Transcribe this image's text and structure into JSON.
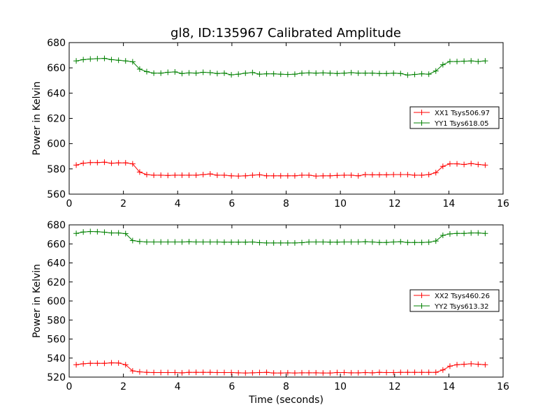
{
  "title": "gl8, ID:135967 Calibrated Amplitude",
  "colors": {
    "red": "#ff0000",
    "green": "#008000"
  },
  "chart_data": [
    {
      "type": "line",
      "title": "gl8, ID:135967 Calibrated Amplitude",
      "xlabel": "",
      "ylabel": "Power in Kelvin",
      "xlim": [
        0,
        16
      ],
      "ylim": [
        560,
        680
      ],
      "xticks": [
        0,
        2,
        4,
        6,
        8,
        10,
        12,
        14,
        16
      ],
      "yticks": [
        560,
        580,
        600,
        620,
        640,
        660,
        680
      ],
      "grid": false,
      "legend": "right",
      "x": [
        0.26,
        0.52,
        0.78,
        1.04,
        1.3,
        1.56,
        1.82,
        2.08,
        2.34,
        2.6,
        2.86,
        3.12,
        3.38,
        3.64,
        3.9,
        4.16,
        4.42,
        4.68,
        4.94,
        5.2,
        5.46,
        5.72,
        5.98,
        6.24,
        6.5,
        6.76,
        7.02,
        7.28,
        7.54,
        7.8,
        8.06,
        8.32,
        8.58,
        8.84,
        9.1,
        9.36,
        9.62,
        9.88,
        10.14,
        10.4,
        10.66,
        10.92,
        11.18,
        11.44,
        11.7,
        11.96,
        12.22,
        12.48,
        12.74,
        13.0,
        13.26,
        13.52,
        13.78,
        14.04,
        14.3,
        14.56,
        14.82,
        15.08,
        15.34
      ],
      "series": [
        {
          "name": "XX1 Tsys506.97",
          "color": "#ff0000",
          "values": [
            583,
            584.5,
            585,
            585,
            585.3,
            584.5,
            584.8,
            584.8,
            584,
            577.5,
            575.5,
            575,
            575,
            574.8,
            575,
            575,
            575,
            575,
            575.5,
            576,
            575,
            575,
            574.5,
            574.3,
            574.5,
            575,
            575.3,
            574.5,
            574.5,
            574.5,
            574.5,
            574.5,
            575,
            575,
            574.3,
            574.5,
            574.5,
            574.8,
            575,
            575,
            574.5,
            575.5,
            575.3,
            575.3,
            575.3,
            575.5,
            575.5,
            575.5,
            575,
            575,
            575.5,
            577,
            582,
            584,
            584,
            583.5,
            584.2,
            583.5,
            583
          ]
        },
        {
          "name": "YY1 Tsys618.05",
          "color": "#008000",
          "values": [
            665.5,
            666.5,
            667,
            667.3,
            667.5,
            666.5,
            666,
            665.5,
            664.8,
            659,
            657,
            655.8,
            655.8,
            656.5,
            656.8,
            655.5,
            656,
            655.8,
            656.5,
            656.2,
            655.5,
            655.8,
            654.5,
            655,
            655.8,
            656.3,
            655,
            655.3,
            655.3,
            655,
            654.8,
            655,
            655.8,
            656,
            655.8,
            656,
            655.8,
            655.5,
            655.8,
            656.2,
            655.8,
            655.8,
            655.8,
            655.5,
            655.5,
            655.8,
            655.5,
            654.3,
            654.8,
            655.3,
            655,
            657.5,
            662.5,
            665,
            665,
            665.3,
            665.5,
            665,
            665.5
          ]
        }
      ]
    },
    {
      "type": "line",
      "title": "",
      "xlabel": "Time (seconds)",
      "ylabel": "Power in Kelvin",
      "xlim": [
        0,
        16
      ],
      "ylim": [
        520,
        680
      ],
      "xticks": [
        0,
        2,
        4,
        6,
        8,
        10,
        12,
        14,
        16
      ],
      "yticks": [
        520,
        540,
        560,
        580,
        600,
        620,
        640,
        660,
        680
      ],
      "grid": false,
      "legend": "right",
      "x": [
        0.26,
        0.52,
        0.78,
        1.04,
        1.3,
        1.56,
        1.82,
        2.08,
        2.34,
        2.6,
        2.86,
        3.12,
        3.38,
        3.64,
        3.9,
        4.16,
        4.42,
        4.68,
        4.94,
        5.2,
        5.46,
        5.72,
        5.98,
        6.24,
        6.5,
        6.76,
        7.02,
        7.28,
        7.54,
        7.8,
        8.06,
        8.32,
        8.58,
        8.84,
        9.1,
        9.36,
        9.62,
        9.88,
        10.14,
        10.4,
        10.66,
        10.92,
        11.18,
        11.44,
        11.7,
        11.96,
        12.22,
        12.48,
        12.74,
        13.0,
        13.26,
        13.52,
        13.78,
        14.04,
        14.3,
        14.56,
        14.82,
        15.08,
        15.34
      ],
      "series": [
        {
          "name": "XX2 Tsys460.26",
          "color": "#ff0000",
          "values": [
            533,
            534,
            534.5,
            534.5,
            534.5,
            535,
            534.8,
            533,
            526.5,
            525.5,
            525,
            524.8,
            524.8,
            524.8,
            524.8,
            524.5,
            525,
            525,
            525,
            525,
            524.8,
            524.8,
            524.8,
            524.5,
            524.3,
            524.5,
            524.8,
            525,
            524.3,
            524.3,
            524.5,
            524.3,
            524.5,
            524.5,
            524.5,
            524.3,
            524.3,
            524.8,
            524.8,
            524.5,
            524.5,
            524.8,
            524.5,
            525,
            524.8,
            524.8,
            525,
            525,
            525,
            525,
            525,
            525,
            527.5,
            531.5,
            533,
            533.5,
            534,
            533.5,
            533
          ]
        },
        {
          "name": "YY2 Tsys613.32",
          "color": "#008000",
          "values": [
            671,
            672.5,
            673,
            672.8,
            672.3,
            671.5,
            671.5,
            670.8,
            663.5,
            662.5,
            662,
            662,
            662,
            662,
            662,
            662,
            662.3,
            662,
            662,
            662,
            662,
            661.8,
            661.8,
            661.8,
            661.8,
            662,
            661.3,
            661,
            661,
            661,
            661,
            661,
            661.3,
            662,
            662,
            662,
            661.8,
            661.8,
            662,
            662,
            662,
            662.3,
            662,
            661.5,
            661.5,
            662,
            662.3,
            661.5,
            661.5,
            661.5,
            661.8,
            663,
            669,
            670.5,
            671,
            671,
            671.5,
            671.5,
            671
          ]
        }
      ]
    }
  ]
}
